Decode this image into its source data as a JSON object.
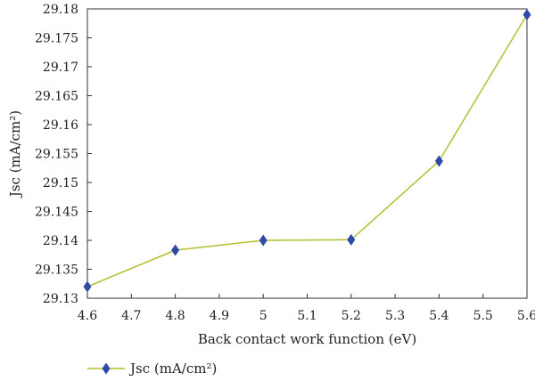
{
  "chart_data": {
    "type": "line",
    "x": [
      4.6,
      4.8,
      5.0,
      5.2,
      5.4,
      5.6
    ],
    "series": [
      {
        "name": "Jsc (mA/cm²)",
        "values": [
          29.132,
          29.1383,
          29.14,
          29.1401,
          29.1537,
          29.179
        ]
      }
    ],
    "xlabel": "Back contact work function (eV)",
    "ylabel": "Jsc (mA/cm²)",
    "xlim": [
      4.6,
      5.6
    ],
    "ylim": [
      29.13,
      29.18
    ],
    "xticks": [
      "4.6",
      "4.7",
      "4.8",
      "4.9",
      "5",
      "5.1",
      "5.2",
      "5.3",
      "5.4",
      "5.5",
      "5.6"
    ],
    "yticks": [
      "29.13",
      "29.135",
      "29.14",
      "29.145",
      "29.15",
      "29.155",
      "29.16",
      "29.165",
      "29.17",
      "29.175",
      "29.18"
    ],
    "grid": false,
    "legend_position": "bottom-left",
    "line_color": "#b5be2e",
    "marker_color": "#2e49a8",
    "marker": "diamond"
  }
}
